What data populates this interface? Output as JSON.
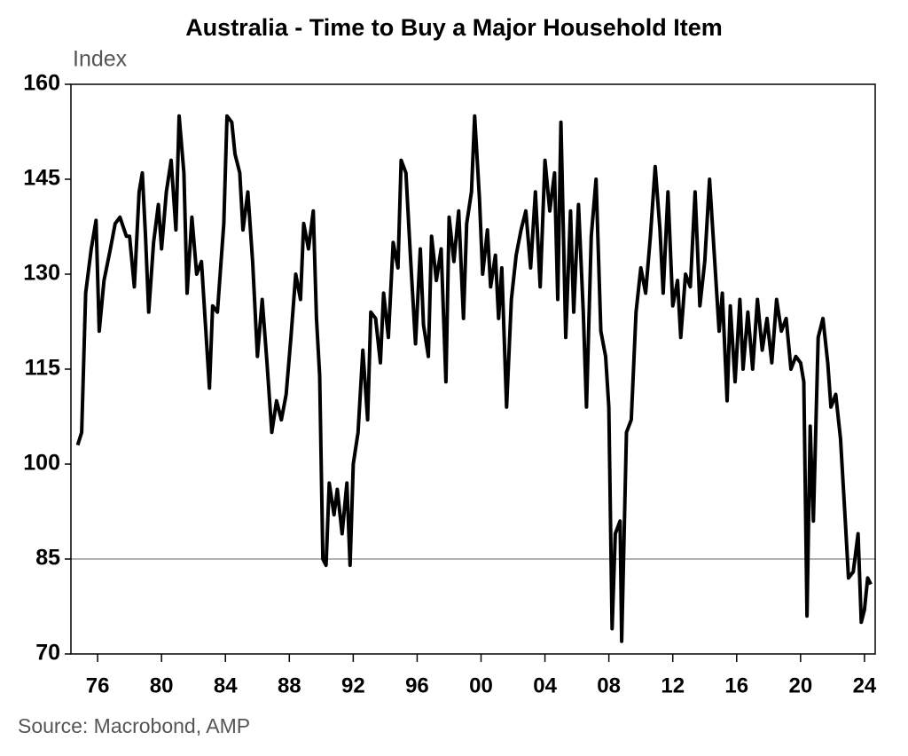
{
  "chart_data": {
    "type": "line",
    "title": "Australia - Time to Buy a Major Household Item",
    "y_label": "Index",
    "source": "Source: Macrobond, AMP",
    "xlim": [
      1974.33,
      2024.67
    ],
    "ylim": [
      70,
      160
    ],
    "yticks": [
      70,
      85,
      100,
      115,
      130,
      145,
      160
    ],
    "xticks": [
      {
        "value": 1976,
        "label": "76"
      },
      {
        "value": 1980,
        "label": "80"
      },
      {
        "value": 1984,
        "label": "84"
      },
      {
        "value": 1988,
        "label": "88"
      },
      {
        "value": 1992,
        "label": "92"
      },
      {
        "value": 1996,
        "label": "96"
      },
      {
        "value": 2000,
        "label": "00"
      },
      {
        "value": 2004,
        "label": "04"
      },
      {
        "value": 2008,
        "label": "08"
      },
      {
        "value": 2012,
        "label": "12"
      },
      {
        "value": 2016,
        "label": "16"
      },
      {
        "value": 2020,
        "label": "20"
      },
      {
        "value": 2024,
        "label": "24"
      }
    ],
    "reference_line": 85,
    "reference_color": "#999999",
    "series": [
      {
        "color": "#000000",
        "x": [
          1974.75,
          1975.0,
          1975.25,
          1975.6,
          1975.9,
          1976.1,
          1976.4,
          1976.8,
          1977.1,
          1977.4,
          1977.8,
          1978.0,
          1978.3,
          1978.6,
          1978.8,
          1979.0,
          1979.2,
          1979.5,
          1979.8,
          1980.0,
          1980.3,
          1980.6,
          1980.9,
          1981.1,
          1981.4,
          1981.6,
          1981.9,
          1982.2,
          1982.5,
          1982.8,
          1983.0,
          1983.2,
          1983.5,
          1983.9,
          1984.1,
          1984.4,
          1984.6,
          1984.9,
          1985.1,
          1985.4,
          1985.7,
          1986.0,
          1986.3,
          1986.6,
          1986.9,
          1987.2,
          1987.5,
          1987.8,
          1988.1,
          1988.4,
          1988.7,
          1988.9,
          1989.2,
          1989.5,
          1989.7,
          1989.9,
          1990.1,
          1990.3,
          1990.5,
          1990.8,
          1991.0,
          1991.3,
          1991.6,
          1991.8,
          1992.0,
          1992.3,
          1992.6,
          1992.9,
          1993.1,
          1993.4,
          1993.7,
          1993.9,
          1994.2,
          1994.5,
          1994.8,
          1995.0,
          1995.3,
          1995.6,
          1995.9,
          1996.2,
          1996.4,
          1996.7,
          1996.9,
          1997.2,
          1997.5,
          1997.8,
          1998.0,
          1998.3,
          1998.6,
          1998.9,
          1999.1,
          1999.4,
          1999.6,
          1999.9,
          2000.1,
          2000.4,
          2000.6,
          2000.9,
          2001.1,
          2001.3,
          2001.6,
          2001.9,
          2002.2,
          2002.5,
          2002.8,
          2003.1,
          2003.4,
          2003.7,
          2004.0,
          2004.3,
          2004.6,
          2004.8,
          2005.0,
          2005.3,
          2005.6,
          2005.8,
          2006.1,
          2006.4,
          2006.6,
          2006.9,
          2007.2,
          2007.5,
          2007.8,
          2008.0,
          2008.2,
          2008.4,
          2008.7,
          2008.8,
          2009.1,
          2009.4,
          2009.7,
          2010.0,
          2010.3,
          2010.6,
          2010.9,
          2011.2,
          2011.4,
          2011.7,
          2012.0,
          2012.3,
          2012.5,
          2012.8,
          2013.1,
          2013.4,
          2013.7,
          2014.0,
          2014.3,
          2014.6,
          2014.9,
          2015.1,
          2015.4,
          2015.6,
          2015.9,
          2016.2,
          2016.4,
          2016.7,
          2017.0,
          2017.3,
          2017.6,
          2017.9,
          2018.2,
          2018.5,
          2018.8,
          2019.1,
          2019.4,
          2019.7,
          2020.0,
          2020.2,
          2020.4,
          2020.6,
          2020.8,
          2021.1,
          2021.4,
          2021.7,
          2021.9,
          2022.2,
          2022.5,
          2022.8,
          2023.0,
          2023.3,
          2023.6,
          2023.8,
          2024.0,
          2024.2,
          2024.4
        ],
        "values": [
          103,
          105,
          127,
          134,
          138.5,
          121,
          129,
          134,
          138,
          139,
          136,
          136,
          128,
          143,
          146,
          136,
          124,
          135,
          141,
          134,
          143,
          148,
          137,
          155,
          146,
          127,
          139,
          130,
          132,
          120,
          112,
          125,
          124,
          138,
          155,
          154,
          149,
          146,
          137,
          143,
          132,
          117,
          126,
          116,
          105,
          110,
          107,
          111,
          120,
          130,
          126,
          138,
          134,
          140,
          123,
          114,
          85,
          84,
          97,
          92,
          96,
          89,
          97,
          84,
          100,
          105,
          118,
          107,
          124,
          123,
          116,
          127,
          120,
          135,
          131,
          148,
          146,
          132,
          119,
          134,
          122,
          117,
          136,
          129,
          134,
          113,
          139,
          132,
          140,
          123,
          138,
          143,
          155,
          142,
          130,
          137,
          128,
          133,
          123,
          131,
          109,
          126,
          133,
          137,
          140,
          131,
          143,
          128,
          148,
          140,
          146,
          126,
          154,
          120,
          140,
          124,
          141,
          124,
          109,
          136,
          145,
          121,
          117,
          109,
          74,
          89,
          91,
          72,
          105,
          107,
          124,
          131,
          127,
          136,
          147,
          137,
          127,
          143,
          125,
          129,
          120,
          130,
          128,
          143,
          125,
          132,
          145,
          133,
          121,
          127,
          110,
          125,
          113,
          126,
          115,
          124,
          115,
          126,
          118,
          123,
          116,
          126,
          121,
          123,
          115,
          117,
          116,
          113,
          76,
          106,
          91,
          120,
          123,
          116,
          109,
          111,
          104,
          91,
          82,
          83,
          89,
          75,
          77,
          82,
          81
        ]
      }
    ]
  }
}
